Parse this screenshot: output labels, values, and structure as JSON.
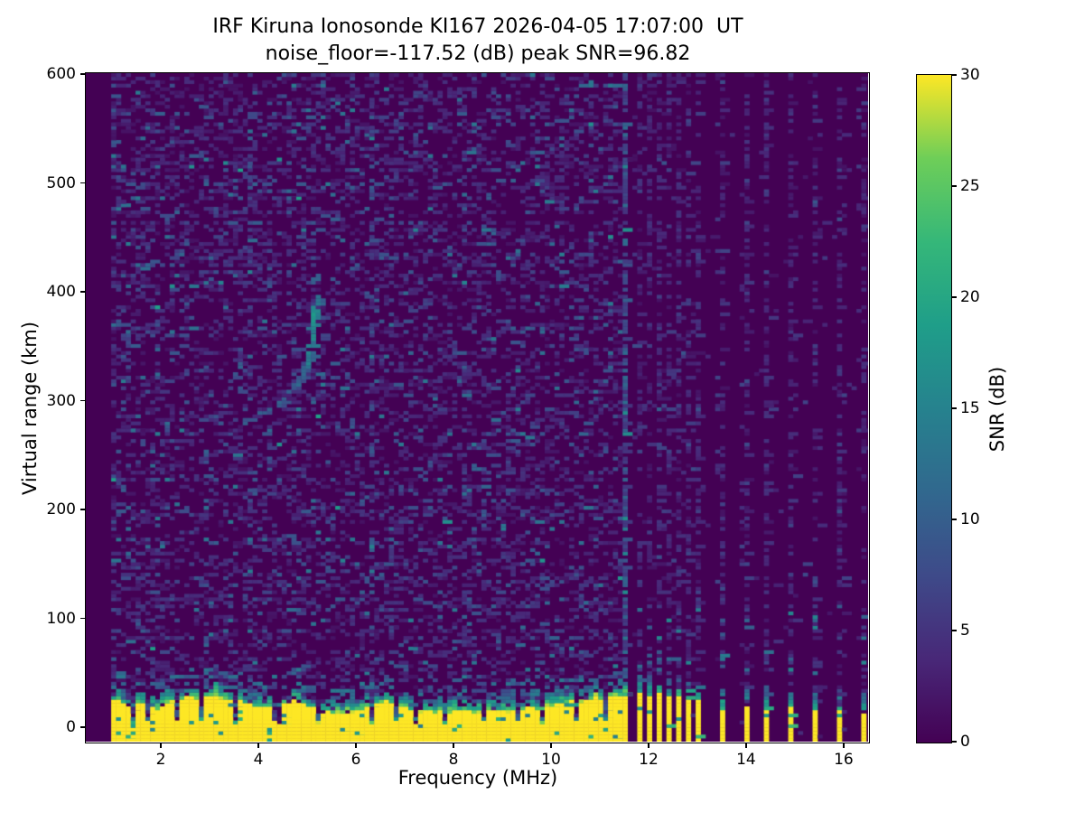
{
  "figure": {
    "title_line1": "IRF Kiruna Ionosonde KI167 2026-04-05 17:07:00  UT",
    "title_line2": "noise_floor=-117.52 (dB) peak SNR=96.82"
  },
  "chart_data": {
    "type": "heatmap",
    "title": "IRF Kiruna Ionosonde KI167 2026-04-05 17:07:00  UT",
    "subtitle": "noise_floor=-117.52 (dB) peak SNR=96.82",
    "xlabel": "Frequency (MHz)",
    "ylabel": "Virtual range (km)",
    "xlim": [
      0.48,
      16.52
    ],
    "ylim": [
      -14,
      600
    ],
    "xticks": [
      2,
      4,
      6,
      8,
      10,
      12,
      14,
      16
    ],
    "yticks": [
      0,
      100,
      200,
      300,
      400,
      500,
      600
    ],
    "grid_lines": false,
    "colorbar": {
      "label": "SNR (dB)",
      "ticks": [
        0,
        5,
        10,
        15,
        20,
        25,
        30
      ],
      "clim": [
        0,
        30
      ],
      "colormap": "viridis",
      "position": "right"
    },
    "colormap_stops": [
      [
        0.0,
        68,
        1,
        84
      ],
      [
        0.125,
        72,
        40,
        120
      ],
      [
        0.25,
        62,
        74,
        137
      ],
      [
        0.375,
        49,
        104,
        142
      ],
      [
        0.5,
        38,
        130,
        142
      ],
      [
        0.625,
        31,
        158,
        137
      ],
      [
        0.75,
        53,
        183,
        121
      ],
      [
        0.875,
        110,
        206,
        88
      ],
      [
        1.0,
        253,
        231,
        37
      ]
    ],
    "data_extent": {
      "fmin": 1.0,
      "fmax": 16.48
    },
    "grid": {
      "freq_bins": 155,
      "range_bins": 190
    },
    "seed": 20260405,
    "noise": {
      "p_left": 0.3,
      "p_right_bg": 0.012,
      "p_comb": 0.42,
      "right_start": 11.62
    },
    "interference_stripes": [
      {
        "f": 1.06,
        "w": 0.07,
        "p": 0.55,
        "boost": 0
      },
      {
        "f": 3.86,
        "w": 0.05,
        "p": 0.5,
        "boost": 1
      },
      {
        "f": 6.32,
        "w": 0.05,
        "p": 0.45,
        "boost": 1
      },
      {
        "f": 8.27,
        "w": 0.04,
        "p": 0.4,
        "boost": 1
      },
      {
        "f": 9.95,
        "w": 0.04,
        "p": 0.38,
        "boost": 0
      },
      {
        "f": 11.53,
        "w": 0.05,
        "p": 0.78,
        "boost": 3
      }
    ],
    "comb": {
      "cluster_start": 11.8,
      "cluster_step": 0.2035,
      "cluster_count": 7,
      "isolated": [
        13.5,
        13.99,
        14.47,
        14.97,
        15.46,
        15.96,
        16.44
      ]
    },
    "ground_clutter": {
      "fmin": 1.0,
      "fmax": 11.62,
      "base_top": 22,
      "top_range_km": [
        13,
        29
      ],
      "notches": [
        1.45,
        1.76,
        2.33,
        2.89,
        3.55,
        4.4,
        5.28,
        6.3,
        6.86,
        7.26,
        7.8,
        8.64,
        9.3,
        9.82,
        10.55,
        11.15
      ]
    },
    "bottom_bars": [
      {
        "f": 11.8,
        "h": 30
      },
      {
        "f": 11.99,
        "h": 28
      },
      {
        "f": 12.19,
        "h": 31
      },
      {
        "f": 12.4,
        "h": 27
      },
      {
        "f": 12.6,
        "h": 29
      },
      {
        "f": 12.8,
        "h": 26
      },
      {
        "f": 13.0,
        "h": 24
      },
      {
        "f": 13.5,
        "h": 16
      },
      {
        "f": 13.99,
        "h": 18
      },
      {
        "f": 14.47,
        "h": 15
      },
      {
        "f": 14.97,
        "h": 17
      },
      {
        "f": 15.46,
        "h": 14
      },
      {
        "f": 15.96,
        "h": 16
      },
      {
        "f": 16.44,
        "h": 12
      }
    ],
    "echo_trace": {
      "description": "F-region ionospheric echo, hook-shaped trace with cusp near 5.2 MHz",
      "points": [
        [
          3.72,
          280
        ],
        [
          3.95,
          285
        ],
        [
          4.15,
          289
        ],
        [
          4.35,
          294
        ],
        [
          4.55,
          300
        ],
        [
          4.72,
          308
        ],
        [
          4.87,
          318
        ],
        [
          4.99,
          330
        ],
        [
          5.08,
          344
        ],
        [
          5.14,
          360
        ],
        [
          5.18,
          375
        ],
        [
          5.21,
          388
        ],
        [
          5.23,
          398
        ]
      ],
      "faint_top_extension_km": [
        400,
        413
      ],
      "peak_brightness_snr_db": 18
    }
  }
}
